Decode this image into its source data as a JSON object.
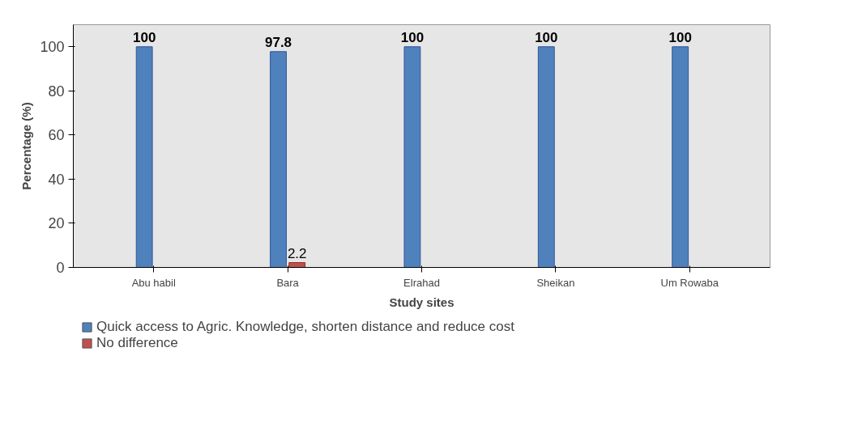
{
  "chart_data": {
    "type": "bar",
    "xlabel": "Study sites",
    "ylabel": "Percentage (%)",
    "categories": [
      "Abu habil",
      "Bara",
      "Elrahad",
      "Sheikan",
      "Um Rowaba"
    ],
    "series": [
      {
        "name": "Quick access to Agric. Knowledge, shorten distance and reduce cost",
        "color": "#4f81bd",
        "values": [
          100,
          97.8,
          100,
          100,
          100
        ],
        "value_labels": [
          "100",
          "97.8",
          "100",
          "100",
          "100"
        ]
      },
      {
        "name": "No difference",
        "color": "#c0504d",
        "values": [
          null,
          2.2,
          null,
          null,
          null
        ],
        "value_labels": [
          null,
          "2.2",
          null,
          null,
          null
        ]
      }
    ],
    "ylim": [
      0,
      100
    ],
    "yticks": [
      0,
      20,
      40,
      60,
      80,
      100
    ],
    "grid": false,
    "legend": "bottom"
  }
}
